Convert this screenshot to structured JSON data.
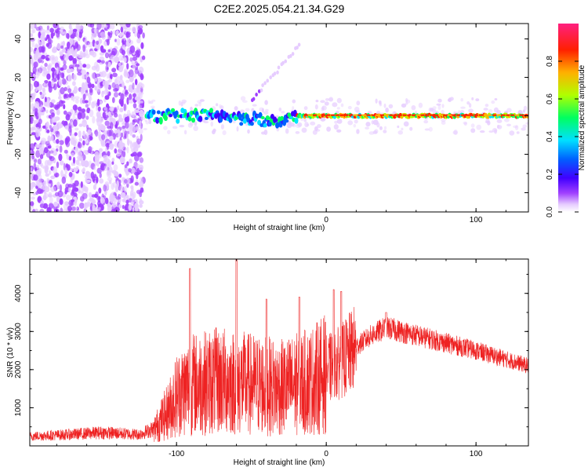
{
  "title": "C2E2.2025.054.21.34.G29",
  "colors": {
    "snr_line": "#ee2222",
    "colormap": [
      "#ffffff",
      "#c080ff",
      "#6000e0",
      "#0000ff",
      "#00c0ff",
      "#00ff80",
      "#c0ff00",
      "#ff8000",
      "#ff0000",
      "#ff3070"
    ]
  },
  "chart_data": [
    {
      "type": "heatmap",
      "title": "C2E2.2025.054.21.34.G29",
      "xlabel": "Height of straight line (km)",
      "ylabel": "Frequency (Hz)",
      "xlim": [
        -198,
        135
      ],
      "ylim": [
        -50,
        48
      ],
      "xticks": [
        -100,
        0,
        100
      ],
      "yticks": [
        -40,
        -20,
        0,
        20,
        40
      ],
      "colorbar": {
        "label": "Normalized spectral amplitude",
        "range": [
          0,
          1
        ],
        "ticks": [
          "0.0",
          "0.2",
          "0.4",
          "0.6",
          "0.8"
        ],
        "tick_values": [
          0,
          0.2,
          0.4,
          0.6,
          0.8
        ]
      },
      "features": [
        {
          "desc": "noise",
          "x_range": [
            -198,
            -122
          ],
          "freq_range": [
            -50,
            48
          ],
          "amplitude": 0.15
        },
        {
          "desc": "carrier",
          "x_range": [
            -120,
            135
          ],
          "freq": 0,
          "amplitude": 0.9
        }
      ]
    },
    {
      "type": "line",
      "xlabel": "Height of straight line (km)",
      "ylabel": "SNR (10 * v/v)",
      "xlim": [
        -198,
        135
      ],
      "ylim": [
        0,
        4900
      ],
      "xticks": [
        -100,
        0,
        100
      ],
      "yticks": [
        1000,
        2000,
        3000,
        4000
      ],
      "envelope": {
        "x": [
          -198,
          -170,
          -150,
          -125,
          -115,
          -105,
          -100,
          -90,
          -70,
          -50,
          -30,
          -10,
          0,
          10,
          20,
          30,
          40,
          50,
          70,
          100,
          135
        ],
        "y": [
          250,
          300,
          350,
          300,
          450,
          1000,
          1400,
          1700,
          1800,
          1700,
          1600,
          1800,
          2000,
          2200,
          2600,
          2900,
          3100,
          3000,
          2800,
          2500,
          2100
        ]
      },
      "peaks": [
        {
          "x": -91,
          "y": 4650
        },
        {
          "x": -60,
          "y": 4900
        },
        {
          "x": -40,
          "y": 3850
        },
        {
          "x": -18,
          "y": 3900
        },
        {
          "x": 5,
          "y": 4100
        },
        {
          "x": 10,
          "y": 4050
        },
        {
          "x": 40,
          "y": 3500
        }
      ]
    }
  ]
}
